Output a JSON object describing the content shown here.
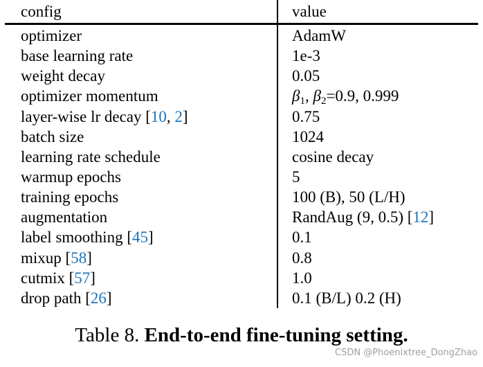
{
  "table": {
    "header": {
      "config": "config",
      "value": "value"
    },
    "rows": [
      {
        "config": [
          {
            "t": "optimizer"
          }
        ],
        "value": [
          {
            "t": "AdamW"
          }
        ]
      },
      {
        "config": [
          {
            "t": "base learning rate"
          }
        ],
        "value": [
          {
            "t": "1e-3"
          }
        ]
      },
      {
        "config": [
          {
            "t": "weight decay"
          }
        ],
        "value": [
          {
            "t": "0.05"
          }
        ]
      },
      {
        "config": [
          {
            "t": "optimizer momentum"
          }
        ],
        "value": [
          {
            "t": "β",
            "k": "italic"
          },
          {
            "t": "1",
            "k": "sub"
          },
          {
            "t": ", "
          },
          {
            "t": "β",
            "k": "italic"
          },
          {
            "t": "2",
            "k": "sub"
          },
          {
            "t": "=0.9, 0.999"
          }
        ]
      },
      {
        "config": [
          {
            "t": "layer-wise lr decay ["
          },
          {
            "t": "10",
            "k": "cite"
          },
          {
            "t": ", "
          },
          {
            "t": "2",
            "k": "cite"
          },
          {
            "t": "]"
          }
        ],
        "value": [
          {
            "t": "0.75"
          }
        ]
      },
      {
        "config": [
          {
            "t": "batch size"
          }
        ],
        "value": [
          {
            "t": "1024"
          }
        ]
      },
      {
        "config": [
          {
            "t": "learning rate schedule"
          }
        ],
        "value": [
          {
            "t": "cosine decay"
          }
        ]
      },
      {
        "config": [
          {
            "t": "warmup epochs"
          }
        ],
        "value": [
          {
            "t": "5"
          }
        ]
      },
      {
        "config": [
          {
            "t": "training epochs"
          }
        ],
        "value": [
          {
            "t": "100 (B), 50 (L/H)"
          }
        ]
      },
      {
        "config": [
          {
            "t": "augmentation"
          }
        ],
        "value": [
          {
            "t": "RandAug (9, 0.5) ["
          },
          {
            "t": "12",
            "k": "cite"
          },
          {
            "t": "]"
          }
        ]
      },
      {
        "config": [
          {
            "t": "label smoothing ["
          },
          {
            "t": "45",
            "k": "cite"
          },
          {
            "t": "]"
          }
        ],
        "value": [
          {
            "t": "0.1"
          }
        ]
      },
      {
        "config": [
          {
            "t": "mixup ["
          },
          {
            "t": "58",
            "k": "cite"
          },
          {
            "t": "]"
          }
        ],
        "value": [
          {
            "t": "0.8"
          }
        ]
      },
      {
        "config": [
          {
            "t": "cutmix ["
          },
          {
            "t": "57",
            "k": "cite"
          },
          {
            "t": "]"
          }
        ],
        "value": [
          {
            "t": "1.0"
          }
        ]
      },
      {
        "config": [
          {
            "t": "drop path ["
          },
          {
            "t": "26",
            "k": "cite"
          },
          {
            "t": "]"
          }
        ],
        "value": [
          {
            "t": "0.1 (B/L) 0.2 (H)"
          }
        ]
      }
    ]
  },
  "caption": {
    "prefix": "Table 8. ",
    "title": "End-to-end fine-tuning setting."
  },
  "watermark": "CSDN @Phoenixtree_DongZhao",
  "colors": {
    "citation_blue": "#1c74bb",
    "text": "#000000",
    "watermark_gray": "#9e9ea3",
    "rule_black": "#000000"
  }
}
